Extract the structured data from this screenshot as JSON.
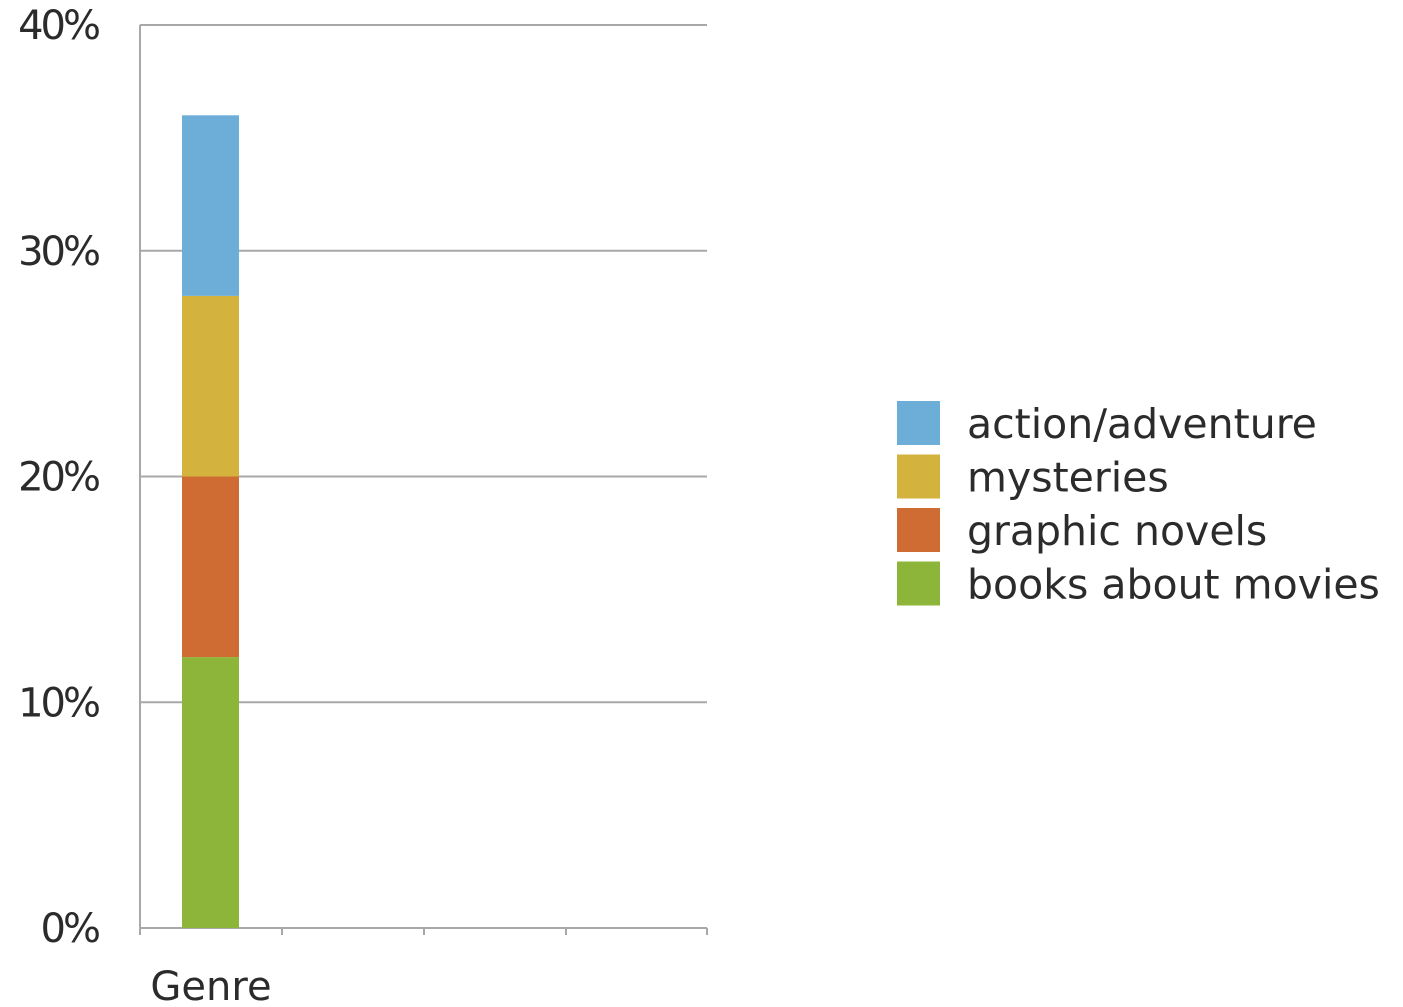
{
  "chart_data": {
    "type": "bar",
    "stacked": true,
    "categories": [
      "Genre"
    ],
    "series": [
      {
        "name": "books about movies",
        "values": [
          12
        ],
        "color": "#8db53a"
      },
      {
        "name": "graphic novels",
        "values": [
          8
        ],
        "color": "#cf6c33"
      },
      {
        "name": "mysteries",
        "values": [
          8
        ],
        "color": "#d3b23e"
      },
      {
        "name": "action/adventure",
        "values": [
          8
        ],
        "color": "#6daed9"
      }
    ],
    "legend_order": [
      "action/adventure",
      "mysteries",
      "graphic novels",
      "books about movies"
    ],
    "y_ticks": [
      0,
      10,
      20,
      30,
      40
    ],
    "y_tick_labels": [
      "0%",
      "10%",
      "20%",
      "30%",
      "40%"
    ],
    "ylim": [
      0,
      40
    ],
    "grid": true,
    "legend_position": "right"
  }
}
